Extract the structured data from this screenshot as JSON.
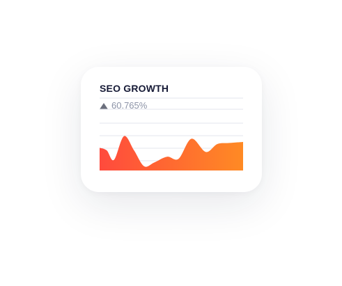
{
  "card": {
    "title": "SEO GROWTH",
    "growth_value": "60.765%"
  },
  "colors": {
    "gradient_start": "#ff4a3d",
    "gradient_end": "#ff8a24",
    "gridline": "#e3e6ec",
    "title": "#161a36",
    "growth_text": "#8c93a7",
    "triangle": "#6b6f7d"
  },
  "icons": {
    "trend": "triangle-up-icon"
  },
  "chart_data": {
    "type": "area",
    "x": [
      0,
      0.05,
      0.1,
      0.17,
      0.24,
      0.31,
      0.38,
      0.47,
      0.55,
      0.64,
      0.74,
      0.82,
      0.9,
      1.0
    ],
    "y": [
      43,
      38,
      20,
      65,
      38,
      8,
      15,
      26,
      22,
      60,
      35,
      50,
      52,
      54
    ],
    "ylim": [
      0,
      100
    ],
    "grid": true,
    "gridlines": 5,
    "title": "",
    "xlabel": "",
    "ylabel": ""
  }
}
